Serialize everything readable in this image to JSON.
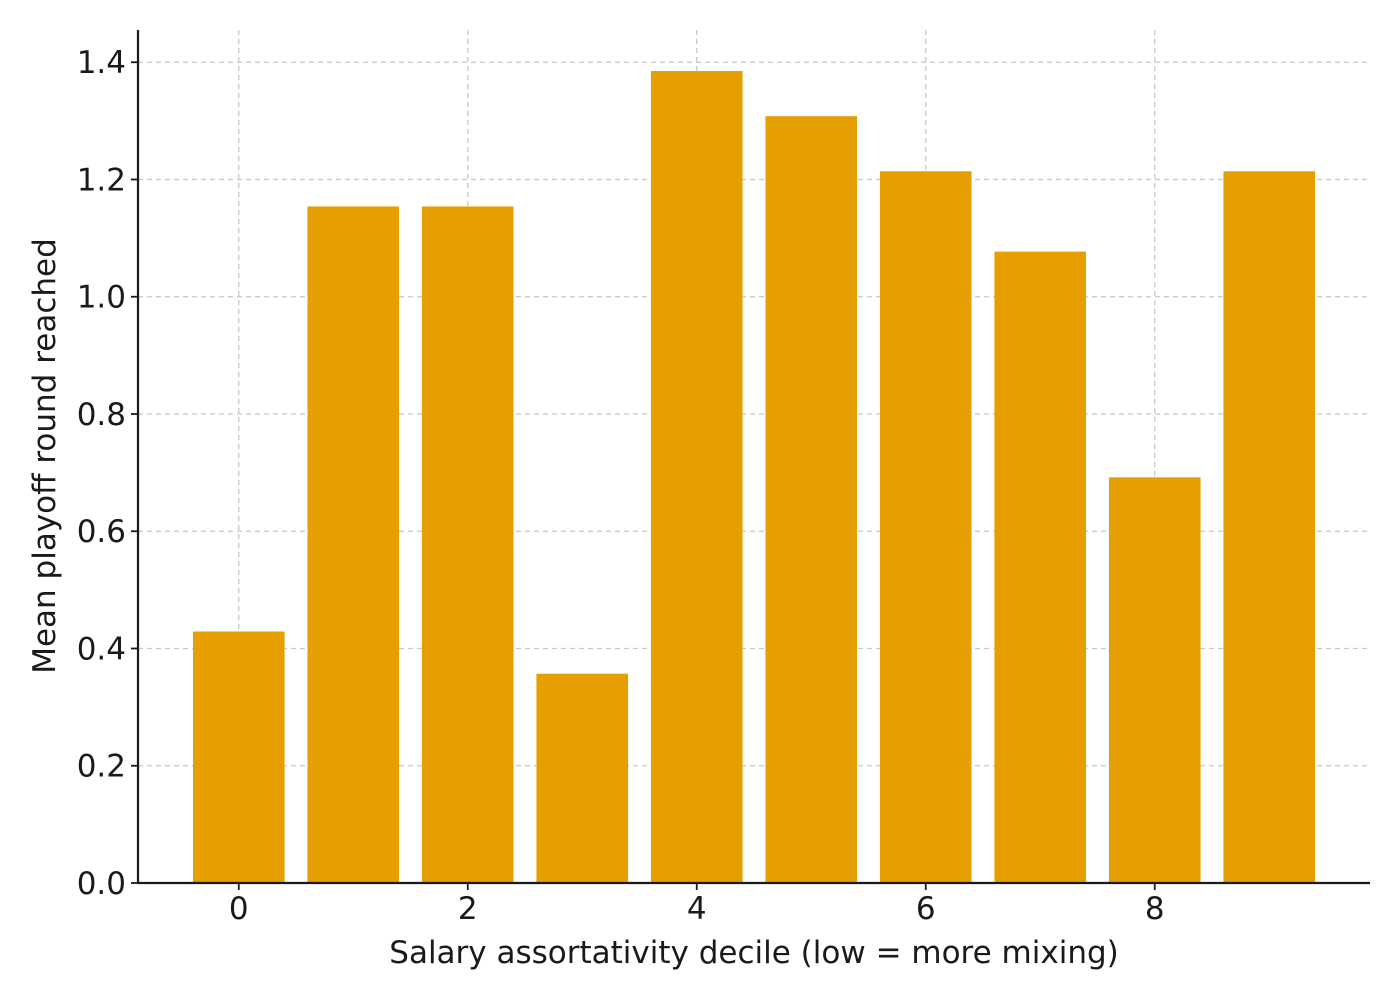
{
  "chart_data": {
    "type": "bar",
    "title": "",
    "xlabel": "Salary assortativity decile (low = more mixing)",
    "ylabel": "Mean playoff round reached",
    "x": [
      0,
      1,
      2,
      3,
      4,
      5,
      6,
      7,
      8,
      9
    ],
    "values": [
      0.429,
      1.154,
      1.154,
      0.357,
      1.385,
      1.308,
      1.214,
      1.077,
      0.692,
      1.214
    ],
    "bar_width": 0.8,
    "xlim": [
      -0.88,
      9.88
    ],
    "ylim": [
      0,
      1.455
    ],
    "xticks": [
      0,
      2,
      4,
      6,
      8
    ],
    "xtick_labels": [
      "0",
      "2",
      "4",
      "6",
      "8"
    ],
    "yticks": [
      0,
      0.2,
      0.4,
      0.6,
      0.8,
      1.0,
      1.2,
      1.4
    ],
    "ytick_labels": [
      "0.0",
      "0.2",
      "0.4",
      "0.6",
      "0.8",
      "1.0",
      "1.2",
      "1.4"
    ],
    "grid": true,
    "colors": {
      "bar": "#E69F00",
      "grid": "#c8c8c8",
      "axis": "#1a1a1a"
    }
  }
}
